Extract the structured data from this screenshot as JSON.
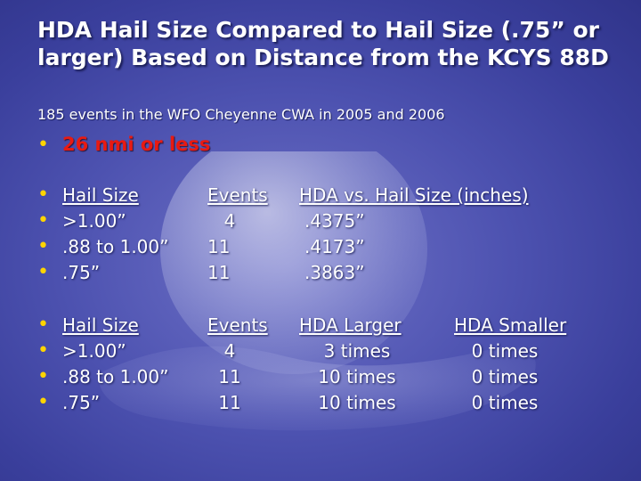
{
  "title": "HDA Hail Size Compared to Hail Size (.75” or larger) Based on Distance from the KCYS 88D",
  "subtitle": "185 events in the WFO Cheyenne CWA in 2005 and 2006",
  "range_label": "26 nmi or less",
  "table1": {
    "headers": [
      "Hail Size",
      "Events",
      "HDA vs. Hail Size (inches)"
    ],
    "rows": [
      [
        ">1.00”",
        "4",
        ".4375”"
      ],
      [
        ".88 to 1.00”",
        "11",
        ".4173”"
      ],
      [
        ".75”",
        "11",
        ".3863”"
      ]
    ]
  },
  "table2": {
    "headers": [
      "Hail Size",
      "Events",
      "HDA Larger",
      "HDA Smaller"
    ],
    "rows": [
      [
        ">1.00”",
        "4",
        "3 times",
        "0 times"
      ],
      [
        ".88 to 1.00”",
        "11",
        "10 times",
        "0 times"
      ],
      [
        ".75”",
        "11",
        "10 times",
        "0 times"
      ]
    ]
  },
  "colors": {
    "accent": "#ffd400",
    "highlight": "#e81a12",
    "background": "#4d52b0"
  },
  "icons": {
    "bullet": "bullet-dot"
  }
}
